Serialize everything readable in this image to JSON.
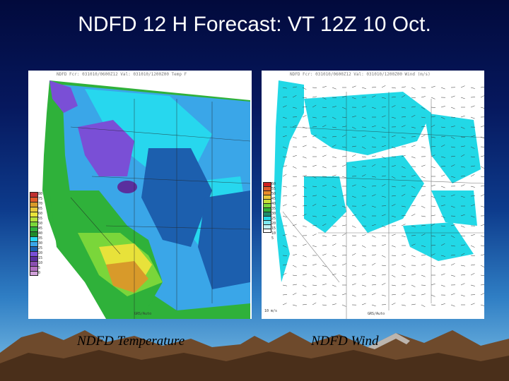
{
  "slide": {
    "title": "NDFD 12 H Forecast: VT 12Z 10 Oct.",
    "background_top": "#020a3c",
    "background_bottom": "#7ec0e6"
  },
  "panels": {
    "temperature": {
      "header": "NDFD Fcr: 031010/0600Z12  Val: 031010/1200Z00  Temp F",
      "caption": "NDFD Temperature",
      "colorbar_labels": [
        "80",
        "75",
        "70",
        "65",
        "60",
        "55",
        "50",
        "45",
        "40",
        "35",
        "30",
        "25",
        "20",
        "15",
        "10",
        "5",
        "0"
      ],
      "footer": "GRS/Auto"
    },
    "wind": {
      "header": "NDFD Fcr: 031010/0600Z12  Val: 031010/1200Z00  Wind (m/s)",
      "caption": "NDFD Wind",
      "colorbar_labels": [
        "60",
        "55",
        "50",
        "45",
        "40",
        "35",
        "30",
        "25",
        "20",
        "15",
        "10",
        "5"
      ],
      "scale_note": "10 m/s",
      "footer": "GRS/Auto"
    }
  },
  "colors": {
    "temp_purple": "#7a4fd6",
    "temp_blue": "#3aa6e8",
    "temp_cyan": "#27d7ee",
    "temp_dark_blue": "#1c5fae",
    "temp_green": "#2fb13a",
    "temp_light_green": "#7ad63a",
    "temp_yellow": "#e8e23a",
    "temp_orange": "#d89a2a",
    "wind_cyan": "#22d8e6",
    "mountain_brown": "#6e4a2c"
  }
}
